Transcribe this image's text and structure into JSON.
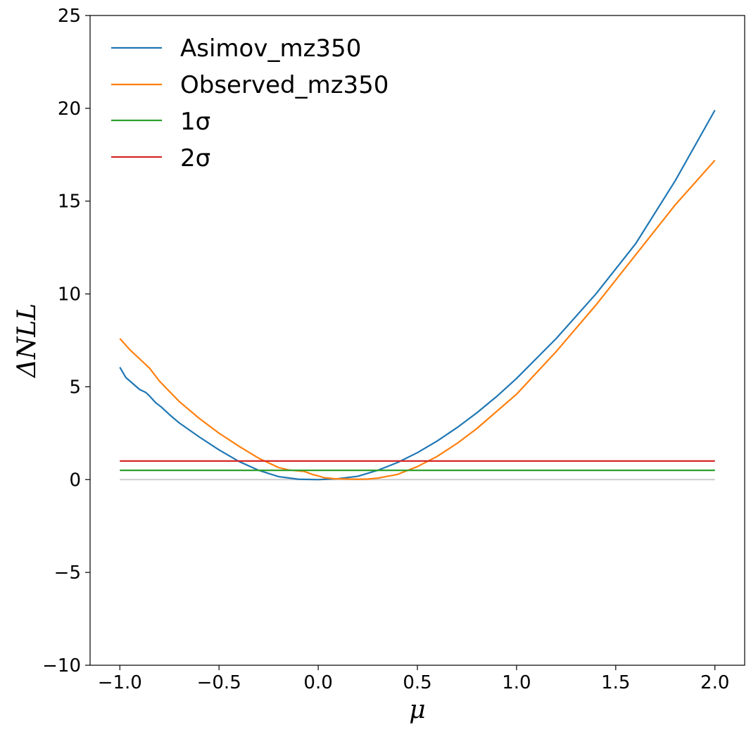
{
  "chart_data": {
    "type": "line",
    "xlabel": "μ",
    "ylabel": "ΔNLL",
    "xlim": [
      -1.15,
      2.15
    ],
    "ylim": [
      -10,
      25
    ],
    "x_ticks": [
      -1.0,
      -0.5,
      0.0,
      0.5,
      1.0,
      1.5,
      2.0
    ],
    "x_tick_labels": [
      "−1.0",
      "−0.5",
      "0.0",
      "0.5",
      "1.0",
      "1.5",
      "2.0"
    ],
    "y_ticks": [
      -10,
      -5,
      0,
      5,
      10,
      15,
      20,
      25
    ],
    "y_tick_labels": [
      "−10",
      "−5",
      "0",
      "5",
      "10",
      "15",
      "20",
      "25"
    ],
    "grid": false,
    "legend_position": "top-left",
    "series": [
      {
        "name": "Asimov_mz350",
        "color": "#1f77b4",
        "x": [
          -1.0,
          -0.97,
          -0.9,
          -0.87,
          -0.85,
          -0.82,
          -0.79,
          -0.75,
          -0.7,
          -0.6,
          -0.5,
          -0.4,
          -0.3,
          -0.2,
          -0.1,
          0.0,
          0.1,
          0.2,
          0.3,
          0.4,
          0.5,
          0.6,
          0.7,
          0.8,
          0.9,
          1.0,
          1.2,
          1.4,
          1.6,
          1.8,
          2.0
        ],
        "y": [
          6.05,
          5.5,
          4.85,
          4.7,
          4.5,
          4.15,
          3.9,
          3.5,
          3.05,
          2.3,
          1.6,
          0.98,
          0.5,
          0.16,
          0.02,
          0.0,
          0.05,
          0.18,
          0.5,
          0.92,
          1.45,
          2.08,
          2.8,
          3.6,
          4.48,
          5.45,
          7.6,
          10.0,
          12.7,
          16.1,
          19.9
        ]
      },
      {
        "name": "Observed_mz350",
        "color": "#ff7f0e",
        "x": [
          -1.0,
          -0.95,
          -0.9,
          -0.85,
          -0.8,
          -0.75,
          -0.7,
          -0.6,
          -0.5,
          -0.4,
          -0.3,
          -0.2,
          -0.15,
          -0.1,
          -0.07,
          -0.03,
          0.0,
          0.03,
          0.08,
          0.15,
          0.2,
          0.25,
          0.3,
          0.4,
          0.5,
          0.6,
          0.7,
          0.8,
          1.0,
          1.2,
          1.4,
          1.6,
          1.8,
          2.0
        ],
        "y": [
          7.6,
          7.0,
          6.5,
          6.0,
          5.3,
          4.75,
          4.2,
          3.3,
          2.5,
          1.8,
          1.15,
          0.65,
          0.52,
          0.47,
          0.44,
          0.28,
          0.2,
          0.1,
          0.05,
          0.03,
          0.02,
          0.03,
          0.08,
          0.28,
          0.7,
          1.25,
          1.95,
          2.75,
          4.6,
          6.9,
          9.4,
          12.1,
          14.8,
          17.2
        ]
      },
      {
        "name": "1σ",
        "color": "#2ca02c",
        "x": [
          -1.0,
          2.0
        ],
        "y": [
          0.5,
          0.5
        ]
      },
      {
        "name": "2σ",
        "color": "#d62728",
        "x": [
          -1.0,
          2.0
        ],
        "y": [
          1.0,
          1.0
        ]
      }
    ],
    "reference_line": {
      "x": [
        -1.0,
        2.0
      ],
      "y": [
        0,
        0
      ],
      "color": "#cccccc"
    }
  },
  "legend": [
    {
      "label": "Asimov_mz350",
      "color": "#1f77b4"
    },
    {
      "label": "Observed_mz350",
      "color": "#ff7f0e"
    },
    {
      "label": "1σ",
      "color": "#2ca02c"
    },
    {
      "label": "2σ",
      "color": "#d62728"
    }
  ]
}
